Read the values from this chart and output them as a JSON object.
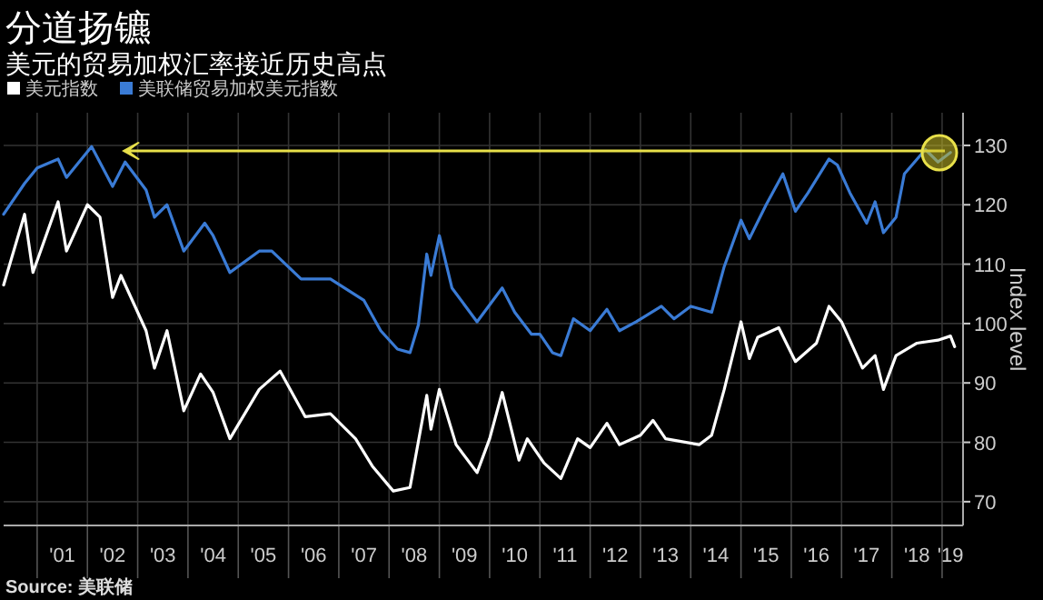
{
  "chart_data": {
    "type": "line",
    "title": "分道扬镳",
    "subtitle": "美元的贸易加权汇率接近历史高点",
    "ylabel": "Index level",
    "annotations": [
      "Source: 美联储"
    ],
    "legend": "top left",
    "grid": true,
    "xlim": [
      "2000-05",
      "2019-06"
    ],
    "ylim": [
      66,
      135.5
    ],
    "yticks": [
      70,
      80,
      90,
      100,
      110,
      120,
      130
    ],
    "xticks": [
      {
        "value": "2001",
        "label": null
      },
      {
        "value": "2002",
        "label": null
      },
      {
        "value": "2003",
        "label": null
      },
      {
        "value": "2004",
        "label": null
      },
      {
        "value": "2005",
        "label": null
      },
      {
        "value": "2006",
        "label": null
      },
      {
        "value": "2007",
        "label": null
      },
      {
        "value": "2008",
        "label": null
      },
      {
        "value": "2009",
        "label": null
      },
      {
        "value": "2010",
        "label": null
      },
      {
        "value": "2011",
        "label": null
      },
      {
        "value": "2012",
        "label": null
      },
      {
        "value": "2013",
        "label": null
      },
      {
        "value": "2014",
        "label": null
      },
      {
        "value": "2015",
        "label": null
      },
      {
        "value": "2016",
        "label": null
      },
      {
        "value": "2017",
        "label": null
      },
      {
        "value": "2018",
        "label": null
      },
      {
        "value": "2019",
        "label": null
      },
      {
        "value": "2001-07",
        "label": "'01"
      },
      {
        "value": "2002-07",
        "label": "'02"
      },
      {
        "value": "2003-07",
        "label": "'03"
      },
      {
        "value": "2004-07",
        "label": "'04"
      },
      {
        "value": "2005-07",
        "label": "'05"
      },
      {
        "value": "2006-07",
        "label": "'06"
      },
      {
        "value": "2007-07",
        "label": "'07"
      },
      {
        "value": "2008-07",
        "label": "'08"
      },
      {
        "value": "2009-07",
        "label": "'09"
      },
      {
        "value": "2010-07",
        "label": "'10"
      },
      {
        "value": "2011-07",
        "label": "'11"
      },
      {
        "value": "2012-07",
        "label": "'12"
      },
      {
        "value": "2013-07",
        "label": "'13"
      },
      {
        "value": "2014-07",
        "label": "'14"
      },
      {
        "value": "2015-07",
        "label": "'15"
      },
      {
        "value": "2016-07",
        "label": "'16"
      },
      {
        "value": "2017-07",
        "label": "'17"
      },
      {
        "value": "2018-07",
        "label": "'18"
      },
      {
        "value": "2019-03",
        "label": "'19"
      }
    ],
    "series": [
      {
        "name": "美元指数",
        "color": "#ffffff",
        "x": [
          "2000-05",
          "2000-10",
          "2000-12",
          "2001-06",
          "2001-08",
          "2002-01",
          "2002-04",
          "2002-07",
          "2002-09",
          "2003-03",
          "2003-05",
          "2003-08",
          "2003-12",
          "2004-04",
          "2004-07",
          "2004-11",
          "2005-06",
          "2005-11",
          "2006-05",
          "2006-11",
          "2007-05",
          "2007-09",
          "2008-02",
          "2008-06",
          "2008-10",
          "2008-11",
          "2009-01",
          "2009-05",
          "2009-10",
          "2010-01",
          "2010-04",
          "2010-08",
          "2010-10",
          "2011-02",
          "2011-06",
          "2011-10",
          "2012-01",
          "2012-05",
          "2012-08",
          "2013-01",
          "2013-04",
          "2013-07",
          "2014-03",
          "2014-06",
          "2014-09",
          "2015-01",
          "2015-03",
          "2015-05",
          "2015-10",
          "2016-02",
          "2016-07",
          "2016-10",
          "2017-01",
          "2017-06",
          "2017-09",
          "2017-11",
          "2018-02",
          "2018-07",
          "2018-12",
          "2019-03",
          "2019-04"
        ],
        "values": [
          106.5,
          118.4,
          108.6,
          120.5,
          112.2,
          120,
          117.9,
          104.4,
          108.1,
          98.8,
          92.5,
          98.8,
          85.3,
          91.5,
          88.4,
          80.6,
          88.9,
          92,
          84.3,
          84.8,
          80.6,
          76,
          71.8,
          72.4,
          87.9,
          82.2,
          88.9,
          79.6,
          74.9,
          80.6,
          88.4,
          77,
          80.6,
          76.5,
          73.9,
          80.6,
          79.1,
          83.2,
          79.6,
          81.2,
          83.7,
          80.6,
          79.6,
          81.2,
          88.9,
          100.3,
          94.1,
          97.7,
          99.3,
          93.6,
          96.7,
          102.9,
          100.3,
          92.5,
          94.6,
          88.9,
          94.6,
          96.7,
          97.2,
          97.9,
          96.1
        ]
      },
      {
        "name": "美联储贸易加权美元指数",
        "color": "#3a7bd5",
        "x": [
          "2000-05",
          "2000-10",
          "2001-01",
          "2001-06",
          "2001-08",
          "2002-02",
          "2002-07",
          "2002-10",
          "2003-03",
          "2003-05",
          "2003-08",
          "2003-12",
          "2004-05",
          "2004-07",
          "2004-11",
          "2005-06",
          "2005-09",
          "2006-04",
          "2006-11",
          "2007-07",
          "2007-11",
          "2008-03",
          "2008-06",
          "2008-08",
          "2008-10",
          "2008-11",
          "2009-01",
          "2009-04",
          "2009-10",
          "2010-04",
          "2010-07",
          "2010-11",
          "2011-01",
          "2011-04",
          "2011-06",
          "2011-09",
          "2012-01",
          "2012-05",
          "2012-08",
          "2012-12",
          "2013-06",
          "2013-09",
          "2014-01",
          "2014-06",
          "2014-09",
          "2015-01",
          "2015-03",
          "2015-07",
          "2015-11",
          "2016-02",
          "2016-05",
          "2016-10",
          "2016-12",
          "2017-03",
          "2017-07",
          "2017-09",
          "2017-11",
          "2018-02",
          "2018-04",
          "2018-09",
          "2018-12",
          "2019-03"
        ],
        "values": [
          118.4,
          123.6,
          126.2,
          127.7,
          124.6,
          129.8,
          123.1,
          127.2,
          122.5,
          117.9,
          120,
          112.2,
          116.9,
          114.8,
          108.6,
          112.2,
          112.2,
          107.5,
          107.5,
          103.9,
          98.8,
          95.7,
          95.1,
          99.8,
          111.7,
          108.1,
          114.8,
          106,
          100.3,
          106,
          101.9,
          98.2,
          98.2,
          95.1,
          94.6,
          100.8,
          98.8,
          102.4,
          98.8,
          100.3,
          102.9,
          100.8,
          102.9,
          101.9,
          109.6,
          117.4,
          114.3,
          120,
          125.2,
          118.9,
          122,
          127.7,
          126.7,
          122,
          116.9,
          120.5,
          115.3,
          117.9,
          125.2,
          129.3,
          127.2,
          128.8
        ]
      }
    ]
  }
}
